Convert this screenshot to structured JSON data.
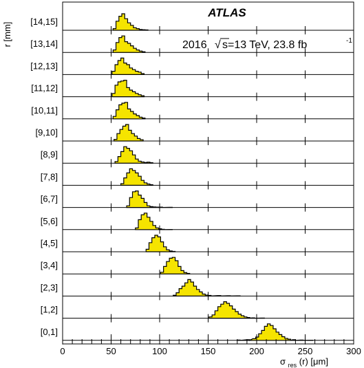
{
  "chart_data": {
    "type": "histogram",
    "title": "ATLAS",
    "subtitle_prefix": "2016",
    "sqrt_symbol": "√",
    "energy_label": "s=13 TeV, 23.8 fb",
    "lumi_exponent": "-1",
    "ylabel": "r [mm]",
    "xlabel_main": "σ",
    "xlabel_sub": "res",
    "xlabel_suffix": "(r) [μm]",
    "xlim": [
      0,
      300
    ],
    "x_ticks": [
      "0",
      "50",
      "100",
      "150",
      "200",
      "250",
      "300"
    ],
    "tick_values": [
      0,
      50,
      100,
      150,
      200,
      250,
      300
    ],
    "minor_tick_step": 10,
    "fill_color": "#f5e400",
    "bins": [
      {
        "label": "[14,15]",
        "peak": 60,
        "values": [
          [
            52,
            0.1
          ],
          [
            55,
            0.55
          ],
          [
            58,
            0.85
          ],
          [
            61,
            1.0
          ],
          [
            64,
            0.7
          ],
          [
            67,
            0.45
          ],
          [
            70,
            0.3
          ],
          [
            73,
            0.15
          ],
          [
            76,
            0.1
          ],
          [
            79,
            0.05
          ],
          [
            82,
            0.03
          ],
          [
            85,
            0.02
          ]
        ]
      },
      {
        "label": "[13,14]",
        "peak": 60,
        "values": [
          [
            52,
            0.15
          ],
          [
            55,
            0.6
          ],
          [
            58,
            0.9
          ],
          [
            61,
            1.0
          ],
          [
            64,
            0.65
          ],
          [
            67,
            0.55
          ],
          [
            70,
            0.4
          ],
          [
            73,
            0.25
          ],
          [
            76,
            0.15
          ],
          [
            79,
            0.08
          ],
          [
            82,
            0.04
          ]
        ]
      },
      {
        "label": "[12,13]",
        "peak": 60,
        "values": [
          [
            51,
            0.2
          ],
          [
            54,
            0.6
          ],
          [
            57,
            0.85
          ],
          [
            60,
            1.0
          ],
          [
            63,
            0.7
          ],
          [
            66,
            0.6
          ],
          [
            69,
            0.4
          ],
          [
            72,
            0.3
          ],
          [
            75,
            0.2
          ],
          [
            78,
            0.15
          ],
          [
            81,
            0.06
          ]
        ]
      },
      {
        "label": "[11,12]",
        "peak": 60,
        "values": [
          [
            51,
            0.2
          ],
          [
            54,
            0.7
          ],
          [
            57,
            0.9
          ],
          [
            60,
            0.95
          ],
          [
            63,
            1.0
          ],
          [
            66,
            0.55
          ],
          [
            69,
            0.4
          ],
          [
            72,
            0.3
          ],
          [
            75,
            0.2
          ],
          [
            78,
            0.12
          ],
          [
            81,
            0.06
          ]
        ]
      },
      {
        "label": "[10,11]",
        "peak": 62,
        "values": [
          [
            52,
            0.15
          ],
          [
            55,
            0.55
          ],
          [
            58,
            0.85
          ],
          [
            61,
            0.95
          ],
          [
            64,
            1.0
          ],
          [
            67,
            0.6
          ],
          [
            70,
            0.45
          ],
          [
            73,
            0.3
          ],
          [
            76,
            0.2
          ],
          [
            79,
            0.1
          ],
          [
            82,
            0.05
          ]
        ]
      },
      {
        "label": "[9,10]",
        "peak": 64,
        "values": [
          [
            53,
            0.1
          ],
          [
            56,
            0.45
          ],
          [
            59,
            0.7
          ],
          [
            62,
            0.9
          ],
          [
            65,
            1.0
          ],
          [
            68,
            0.65
          ],
          [
            71,
            0.45
          ],
          [
            74,
            0.3
          ],
          [
            77,
            0.15
          ],
          [
            80,
            0.08
          ]
        ]
      },
      {
        "label": "[8,9]",
        "peak": 64,
        "values": [
          [
            54,
            0.1
          ],
          [
            57,
            0.4
          ],
          [
            60,
            0.7
          ],
          [
            63,
            1.0
          ],
          [
            66,
            0.9
          ],
          [
            69,
            0.75
          ],
          [
            72,
            0.5
          ],
          [
            75,
            0.25
          ],
          [
            78,
            0.12
          ],
          [
            81,
            0.07
          ],
          [
            84,
            0.04
          ],
          [
            87,
            0.06
          ],
          [
            90,
            0.03
          ]
        ]
      },
      {
        "label": "[7,8]",
        "peak": 68,
        "values": [
          [
            60,
            0.1
          ],
          [
            63,
            0.45
          ],
          [
            66,
            0.75
          ],
          [
            69,
            1.0
          ],
          [
            72,
            0.9
          ],
          [
            75,
            0.75
          ],
          [
            78,
            0.55
          ],
          [
            81,
            0.3
          ],
          [
            84,
            0.15
          ],
          [
            87,
            0.08
          ],
          [
            90,
            0.04
          ]
        ]
      },
      {
        "label": "[6,7]",
        "peak": 73,
        "values": [
          [
            66,
            0.1
          ],
          [
            69,
            0.6
          ],
          [
            72,
            0.95
          ],
          [
            75,
            1.0
          ],
          [
            78,
            0.75
          ],
          [
            81,
            0.55
          ],
          [
            84,
            0.3
          ],
          [
            87,
            0.1
          ],
          [
            90,
            0.05
          ],
          [
            93,
            0.03
          ],
          [
            96,
            0.02
          ],
          [
            100,
            0.02
          ],
          [
            110,
            0.01
          ]
        ]
      },
      {
        "label": "[5,6]",
        "peak": 82,
        "values": [
          [
            75,
            0.1
          ],
          [
            78,
            0.6
          ],
          [
            81,
            0.9
          ],
          [
            84,
            1.0
          ],
          [
            87,
            0.75
          ],
          [
            90,
            0.5
          ],
          [
            93,
            0.25
          ],
          [
            96,
            0.1
          ],
          [
            99,
            0.05
          ],
          [
            102,
            0.02
          ],
          [
            110,
            0.01
          ]
        ]
      },
      {
        "label": "[4,5]",
        "peak": 95,
        "values": [
          [
            86,
            0.15
          ],
          [
            89,
            0.55
          ],
          [
            92,
            0.85
          ],
          [
            95,
            1.0
          ],
          [
            98,
            0.9
          ],
          [
            101,
            0.6
          ],
          [
            104,
            0.3
          ],
          [
            107,
            0.12
          ],
          [
            110,
            0.05
          ],
          [
            113,
            0.02
          ]
        ]
      },
      {
        "label": "[3,4]",
        "peak": 112,
        "values": [
          [
            101,
            0.1
          ],
          [
            104,
            0.45
          ],
          [
            107,
            0.75
          ],
          [
            110,
            0.95
          ],
          [
            113,
            1.0
          ],
          [
            116,
            0.8
          ],
          [
            119,
            0.45
          ],
          [
            122,
            0.2
          ],
          [
            125,
            0.08
          ],
          [
            128,
            0.03
          ]
        ]
      },
      {
        "label": "[2,3]",
        "peak": 128,
        "values": [
          [
            114,
            0.05
          ],
          [
            117,
            0.2
          ],
          [
            120,
            0.45
          ],
          [
            123,
            0.6
          ],
          [
            126,
            0.8
          ],
          [
            129,
            1.0
          ],
          [
            132,
            0.85
          ],
          [
            135,
            0.6
          ],
          [
            138,
            0.4
          ],
          [
            141,
            0.25
          ],
          [
            144,
            0.12
          ],
          [
            147,
            0.06
          ],
          [
            150,
            0.04
          ],
          [
            160,
            0.03
          ],
          [
            170,
            0.02
          ],
          [
            180,
            0.01
          ]
        ]
      },
      {
        "label": "[1,2]",
        "peak": 165,
        "values": [
          [
            151,
            0.08
          ],
          [
            154,
            0.2
          ],
          [
            157,
            0.45
          ],
          [
            160,
            0.7
          ],
          [
            163,
            0.85
          ],
          [
            166,
            1.0
          ],
          [
            169,
            0.9
          ],
          [
            172,
            0.75
          ],
          [
            175,
            0.55
          ],
          [
            178,
            0.4
          ],
          [
            181,
            0.25
          ],
          [
            184,
            0.15
          ],
          [
            187,
            0.08
          ],
          [
            190,
            0.04
          ],
          [
            195,
            0.02
          ],
          [
            205,
            0.01
          ]
        ]
      },
      {
        "label": "[0,1]",
        "peak": 212,
        "values": [
          [
            180,
            0.02
          ],
          [
            190,
            0.04
          ],
          [
            196,
            0.1
          ],
          [
            199,
            0.2
          ],
          [
            202,
            0.4
          ],
          [
            205,
            0.6
          ],
          [
            208,
            0.85
          ],
          [
            211,
            1.0
          ],
          [
            214,
            0.9
          ],
          [
            217,
            0.7
          ],
          [
            220,
            0.5
          ],
          [
            223,
            0.35
          ],
          [
            226,
            0.22
          ],
          [
            229,
            0.12
          ],
          [
            232,
            0.07
          ],
          [
            237,
            0.04
          ],
          [
            245,
            0.02
          ],
          [
            255,
            0.01
          ]
        ]
      }
    ]
  }
}
